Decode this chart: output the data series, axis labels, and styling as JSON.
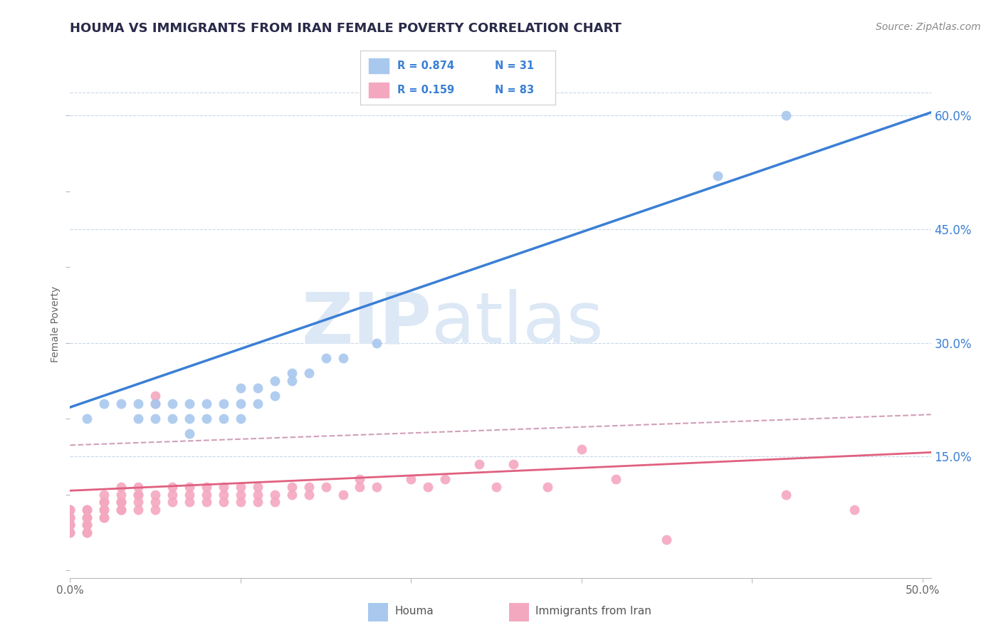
{
  "title": "HOUMA VS IMMIGRANTS FROM IRAN FEMALE POVERTY CORRELATION CHART",
  "source": "Source: ZipAtlas.com",
  "xlabel_houma": "Houma",
  "xlabel_iran": "Immigrants from Iran",
  "ylabel": "Female Poverty",
  "xlim": [
    0.0,
    0.505
  ],
  "ylim": [
    -0.01,
    0.66
  ],
  "xticks": [
    0.0,
    0.1,
    0.2,
    0.3,
    0.4,
    0.5
  ],
  "xtick_labels": [
    "0.0%",
    "",
    "",
    "",
    "",
    "50.0%"
  ],
  "ytick_positions": [
    0.15,
    0.3,
    0.45,
    0.6
  ],
  "ytick_labels": [
    "15.0%",
    "30.0%",
    "45.0%",
    "60.0%"
  ],
  "legend_r_houma": "R = 0.874",
  "legend_n_houma": "N = 31",
  "legend_r_iran": "R = 0.159",
  "legend_n_iran": "N = 83",
  "houma_color": "#a8c8ee",
  "iran_color": "#f4a8c0",
  "houma_line_color": "#3a7fd5",
  "iran_line_color": "#e06080",
  "iran_dashed_color": "#d0a0b8",
  "watermark_zip": "ZIP",
  "watermark_atlas": "atlas",
  "watermark_color": "#dce8f5",
  "bg_color": "#ffffff",
  "grid_color": "#c8d8e8",
  "houma_x": [
    0.01,
    0.02,
    0.03,
    0.04,
    0.04,
    0.05,
    0.05,
    0.06,
    0.06,
    0.07,
    0.07,
    0.07,
    0.08,
    0.08,
    0.09,
    0.09,
    0.1,
    0.1,
    0.1,
    0.11,
    0.11,
    0.12,
    0.12,
    0.13,
    0.13,
    0.14,
    0.15,
    0.16,
    0.18,
    0.38,
    0.42
  ],
  "houma_y": [
    0.2,
    0.22,
    0.22,
    0.2,
    0.22,
    0.2,
    0.22,
    0.2,
    0.22,
    0.18,
    0.2,
    0.22,
    0.2,
    0.22,
    0.2,
    0.22,
    0.2,
    0.22,
    0.24,
    0.22,
    0.24,
    0.23,
    0.25,
    0.25,
    0.26,
    0.26,
    0.28,
    0.28,
    0.3,
    0.52,
    0.6
  ],
  "iran_x": [
    0.0,
    0.0,
    0.0,
    0.0,
    0.0,
    0.0,
    0.0,
    0.0,
    0.0,
    0.0,
    0.01,
    0.01,
    0.01,
    0.01,
    0.01,
    0.01,
    0.01,
    0.01,
    0.02,
    0.02,
    0.02,
    0.02,
    0.02,
    0.02,
    0.02,
    0.03,
    0.03,
    0.03,
    0.03,
    0.03,
    0.03,
    0.03,
    0.04,
    0.04,
    0.04,
    0.04,
    0.04,
    0.05,
    0.05,
    0.05,
    0.05,
    0.05,
    0.06,
    0.06,
    0.06,
    0.07,
    0.07,
    0.07,
    0.08,
    0.08,
    0.08,
    0.09,
    0.09,
    0.09,
    0.1,
    0.1,
    0.1,
    0.11,
    0.11,
    0.11,
    0.12,
    0.12,
    0.13,
    0.13,
    0.14,
    0.14,
    0.15,
    0.16,
    0.17,
    0.17,
    0.18,
    0.2,
    0.21,
    0.22,
    0.24,
    0.25,
    0.26,
    0.28,
    0.3,
    0.32,
    0.35,
    0.42,
    0.46
  ],
  "iran_y": [
    0.06,
    0.07,
    0.08,
    0.07,
    0.06,
    0.05,
    0.07,
    0.08,
    0.06,
    0.05,
    0.07,
    0.08,
    0.06,
    0.05,
    0.07,
    0.08,
    0.06,
    0.05,
    0.09,
    0.08,
    0.07,
    0.09,
    0.1,
    0.08,
    0.07,
    0.09,
    0.08,
    0.09,
    0.1,
    0.08,
    0.11,
    0.09,
    0.1,
    0.09,
    0.08,
    0.11,
    0.1,
    0.22,
    0.23,
    0.1,
    0.09,
    0.08,
    0.1,
    0.11,
    0.09,
    0.1,
    0.09,
    0.11,
    0.1,
    0.09,
    0.11,
    0.1,
    0.09,
    0.11,
    0.1,
    0.09,
    0.11,
    0.1,
    0.09,
    0.11,
    0.1,
    0.09,
    0.11,
    0.1,
    0.11,
    0.1,
    0.11,
    0.1,
    0.11,
    0.12,
    0.11,
    0.12,
    0.11,
    0.12,
    0.14,
    0.11,
    0.14,
    0.11,
    0.16,
    0.12,
    0.04,
    0.1,
    0.08
  ]
}
